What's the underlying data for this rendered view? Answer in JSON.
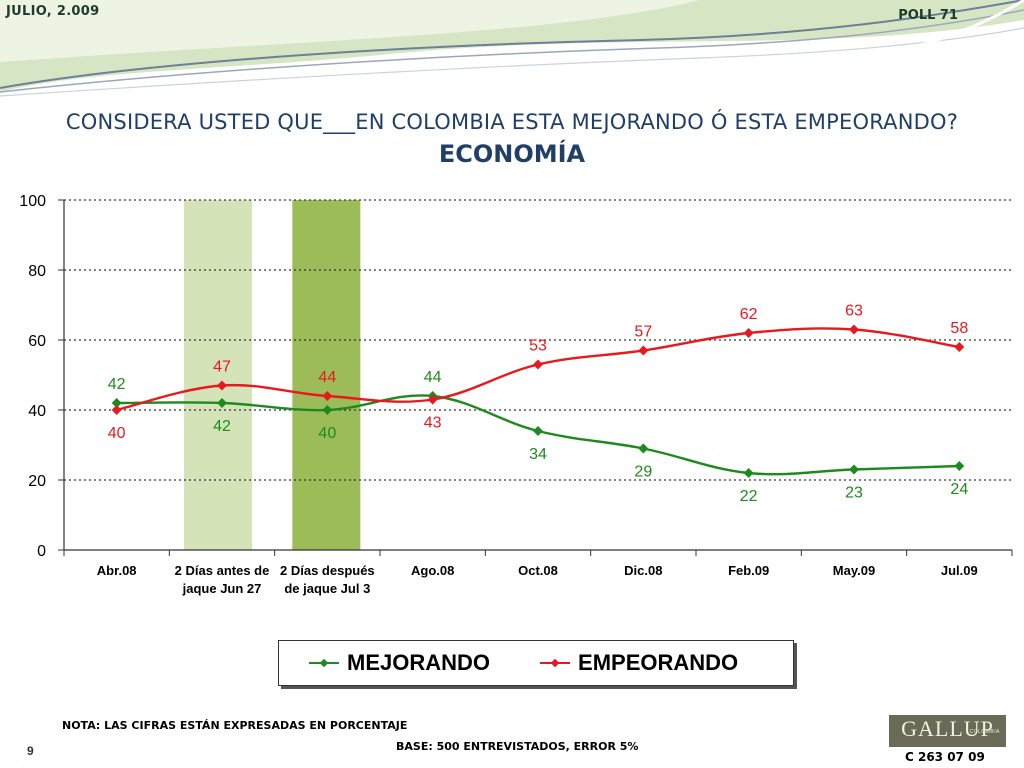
{
  "header": {
    "date": "JULIO, 2.009",
    "poll": "POLL 71"
  },
  "title": {
    "line1": "CONSIDERA USTED QUE___EN COLOMBIA ESTA MEJORANDO Ó ESTA EMPEORANDO?",
    "line2": "ECONOMÍA"
  },
  "colors": {
    "mejorando": "#1e8a1e",
    "empeorando": "#e8191e",
    "band1": "#d4e4b8",
    "band2": "#9cbc59"
  },
  "chart_data": {
    "type": "line",
    "categories": [
      [
        "Abr.08"
      ],
      [
        "2 Días antes de",
        "jaque Jun 27"
      ],
      [
        "2 Días después",
        "de jaque Jul 3"
      ],
      [
        "Ago.08"
      ],
      [
        "Oct.08"
      ],
      [
        "Dic.08"
      ],
      [
        "Feb.09"
      ],
      [
        "May.09"
      ],
      [
        "Jul.09"
      ]
    ],
    "series": [
      {
        "name": "MEJORANDO",
        "values": [
          42,
          42,
          40,
          44,
          34,
          29,
          22,
          23,
          24
        ]
      },
      {
        "name": "EMPEORANDO",
        "values": [
          40,
          47,
          44,
          43,
          53,
          57,
          62,
          63,
          58
        ]
      }
    ],
    "ylim": [
      0,
      100
    ],
    "yticks": [
      0,
      20,
      40,
      60,
      80,
      100
    ],
    "grid": true,
    "highlight_bands": [
      1,
      2
    ],
    "legend_position": "bottom"
  },
  "footer": {
    "note": "NOTA: LAS CIFRAS ESTÁN EXPRESADAS EN PORCENTAJE",
    "base": "BASE: 500 ENTREVISTADOS, ERROR 5%",
    "page": "9",
    "logo": "GALLUP",
    "logo_sub": "COLOMBIA",
    "code": "C 263 07 09"
  }
}
